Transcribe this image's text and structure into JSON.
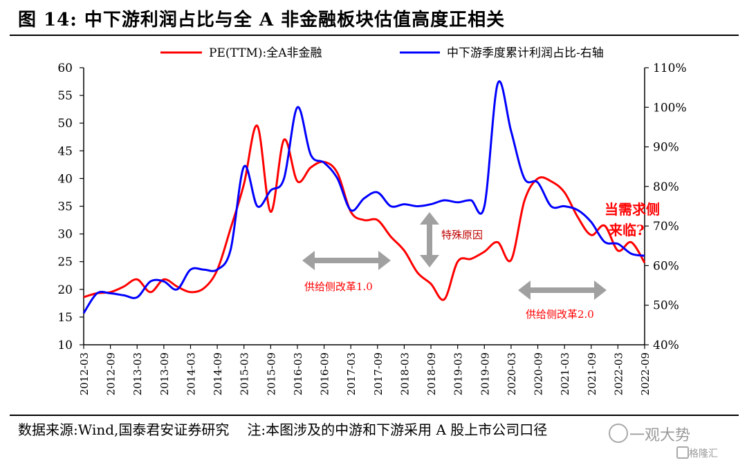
{
  "header": {
    "title": "图 14:  中下游利润占比与全 A 非金融板块估值高度正相关"
  },
  "footer": {
    "source": "数据来源:Wind,国泰君安证券研究",
    "note": "注:本图涉及的中游和下游采用 A 股上市公司口径"
  },
  "watermark": {
    "text": "一观大势",
    "text2": "格隆汇"
  },
  "colors": {
    "pe_line": "#ff0000",
    "profit_line": "#0000ff",
    "arrow": "#a0a0a0",
    "annotation_red": "#ff0000",
    "annotation_dark": "#c00000"
  },
  "chart_data": {
    "type": "line",
    "legend_position": "top",
    "x_categories": [
      "2012-03",
      "2012-09",
      "2013-03",
      "2013-09",
      "2014-03",
      "2014-09",
      "2015-03",
      "2015-09",
      "2016-03",
      "2016-09",
      "2017-03",
      "2017-09",
      "2018-03",
      "2018-09",
      "2019-03",
      "2019-09",
      "2020-03",
      "2020-09",
      "2021-03",
      "2021-09",
      "2022-03",
      "2022-09"
    ],
    "y_left": {
      "ticks": [
        "60",
        "55",
        "50",
        "45",
        "40",
        "35",
        "30",
        "25",
        "20",
        "15",
        "10"
      ],
      "range": [
        10,
        60
      ]
    },
    "y_right": {
      "ticks": [
        "110%",
        "100%",
        "90%",
        "80%",
        "70%",
        "60%",
        "50%",
        "40%"
      ],
      "range": [
        40,
        110
      ],
      "unit": "%"
    },
    "series": [
      {
        "name": "PE(TTM):全A非金融",
        "axis": "left",
        "x": [
          "2012-03",
          "2012-06",
          "2012-09",
          "2012-12",
          "2013-03",
          "2013-06",
          "2013-09",
          "2013-12",
          "2014-03",
          "2014-06",
          "2014-09",
          "2014-12",
          "2015-03",
          "2015-06",
          "2015-09",
          "2015-12",
          "2016-03",
          "2016-06",
          "2016-09",
          "2016-12",
          "2017-03",
          "2017-06",
          "2017-09",
          "2017-12",
          "2018-03",
          "2018-06",
          "2018-09",
          "2018-12",
          "2019-03",
          "2019-06",
          "2019-09",
          "2019-12",
          "2020-03",
          "2020-06",
          "2020-09",
          "2020-12",
          "2021-03",
          "2021-06",
          "2021-09",
          "2021-12",
          "2022-03",
          "2022-06",
          "2022-09"
        ],
        "values": [
          18.6,
          19.3,
          19.5,
          20.5,
          21.8,
          19.5,
          21.8,
          20.5,
          19.5,
          20.2,
          23.5,
          31,
          39,
          49.5,
          34,
          47,
          39.5,
          42,
          43,
          41,
          34,
          32.5,
          32.5,
          29.5,
          27,
          23,
          21,
          18.2,
          25,
          25.5,
          26.8,
          28.5,
          25.3,
          36,
          40,
          39.5,
          37.5,
          33,
          29.8,
          31.5,
          27,
          28.5,
          24.8
        ]
      },
      {
        "name": "中下游季度累计利润占比-右轴",
        "axis": "right",
        "x": [
          "2012-03",
          "2012-06",
          "2012-09",
          "2012-12",
          "2013-03",
          "2013-06",
          "2013-09",
          "2013-12",
          "2014-03",
          "2014-06",
          "2014-09",
          "2014-12",
          "2015-03",
          "2015-06",
          "2015-09",
          "2015-12",
          "2016-03",
          "2016-06",
          "2016-09",
          "2016-12",
          "2017-03",
          "2017-06",
          "2017-09",
          "2017-12",
          "2018-03",
          "2018-06",
          "2018-09",
          "2018-12",
          "2019-03",
          "2019-06",
          "2019-09",
          "2019-12",
          "2020-03",
          "2020-06",
          "2020-09",
          "2020-12",
          "2021-03",
          "2021-06",
          "2021-09",
          "2021-12",
          "2022-03",
          "2022-06",
          "2022-09"
        ],
        "values": [
          48,
          53,
          53,
          52.5,
          52,
          56,
          56,
          54,
          59,
          59,
          59,
          64,
          85,
          75,
          79,
          82,
          100,
          88,
          86,
          82,
          74,
          77,
          78.5,
          75,
          75.5,
          75,
          75.5,
          76.5,
          76,
          76.5,
          75,
          106,
          94,
          82,
          81,
          75,
          75,
          74,
          71,
          66,
          65.5,
          63,
          62.5
        ]
      }
    ],
    "annotations": {
      "special_reasons": "特殊原因",
      "supply_side_1": "供给侧改革1.0",
      "supply_side_2": "供给侧改革2.0",
      "demand_line1": "当需求侧",
      "demand_line2": "来临?"
    }
  }
}
